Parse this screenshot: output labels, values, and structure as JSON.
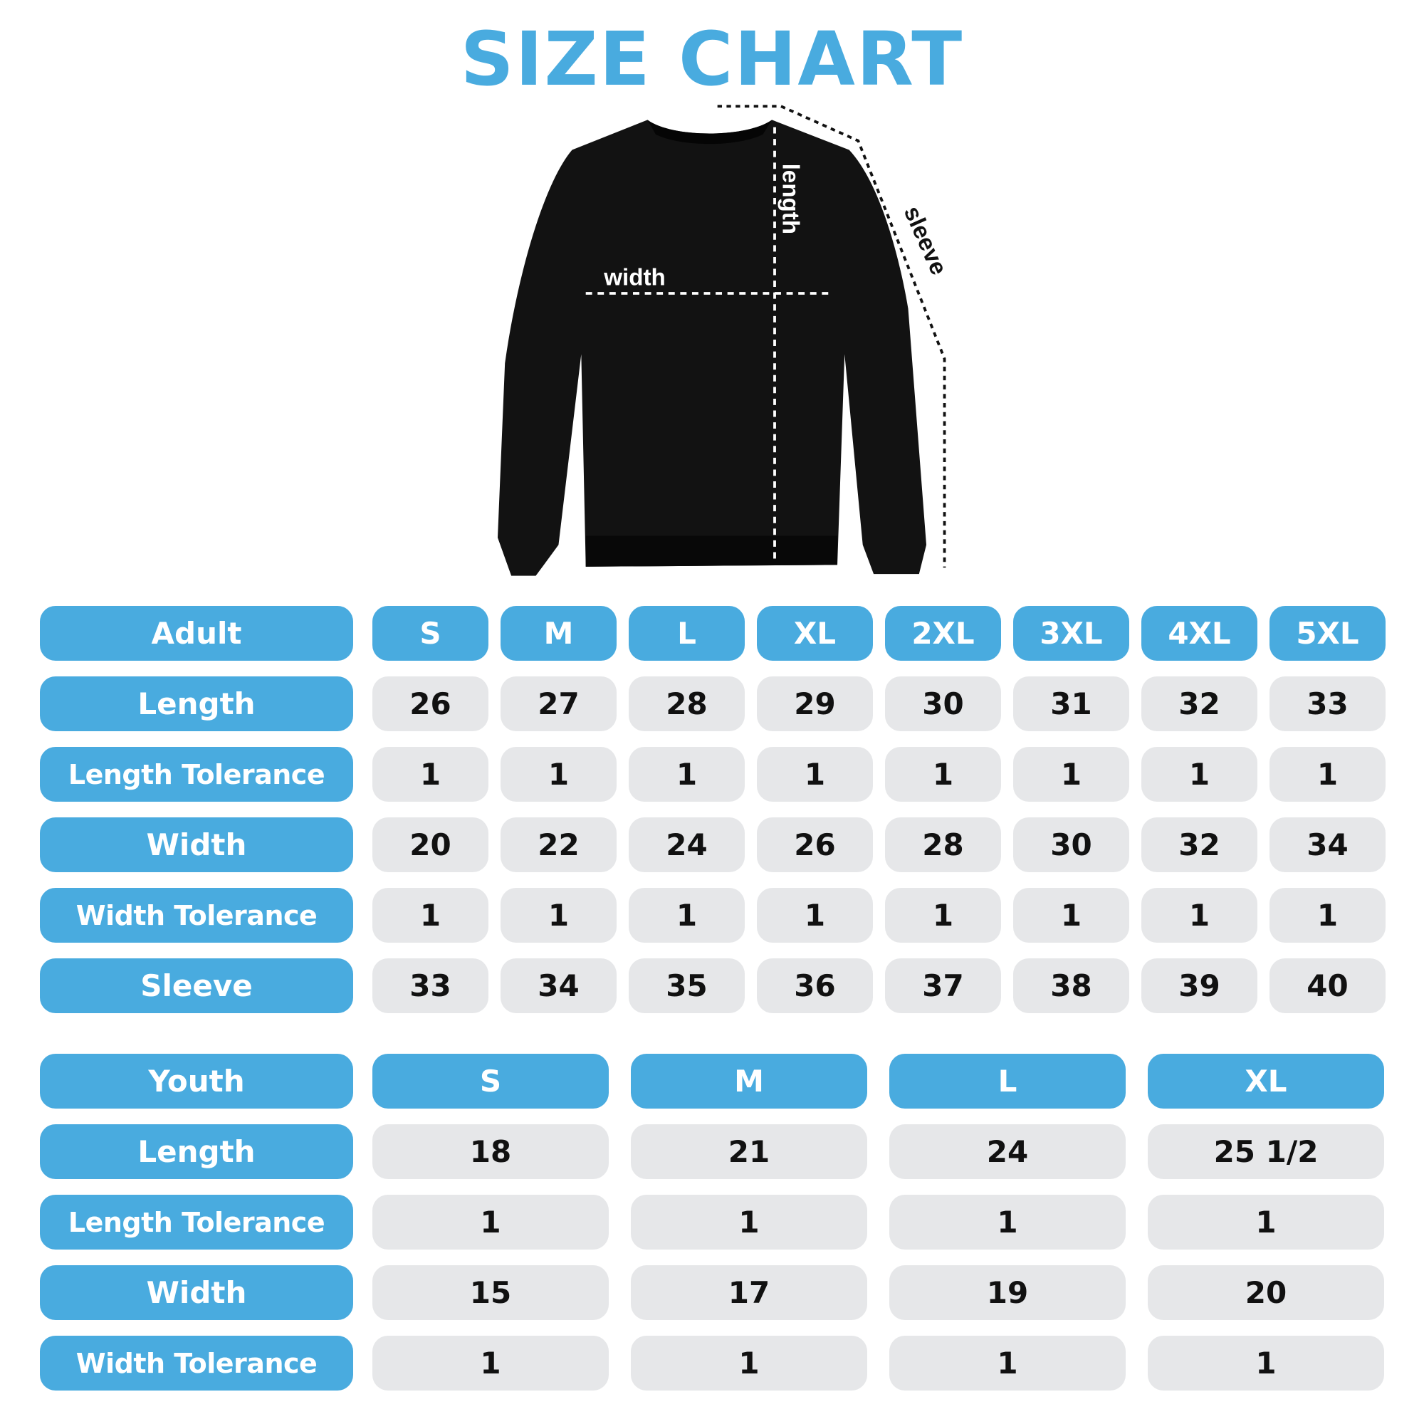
{
  "title": "SIZE CHART",
  "diagram_labels": {
    "width": "width",
    "length": "length",
    "sleeve": "sleeve"
  },
  "colors": {
    "accent": "#49ABDF",
    "cell": "#E6E7E9",
    "garment": "#111111"
  },
  "adult": {
    "header": "Adult",
    "sizes": [
      "S",
      "M",
      "L",
      "XL",
      "2XL",
      "3XL",
      "4XL",
      "5XL"
    ],
    "rows": [
      {
        "label": "Length",
        "values": [
          "26",
          "27",
          "28",
          "29",
          "30",
          "31",
          "32",
          "33"
        ]
      },
      {
        "label": "Length Tolerance",
        "values": [
          "1",
          "1",
          "1",
          "1",
          "1",
          "1",
          "1",
          "1"
        ]
      },
      {
        "label": "Width",
        "values": [
          "20",
          "22",
          "24",
          "26",
          "28",
          "30",
          "32",
          "34"
        ]
      },
      {
        "label": "Width Tolerance",
        "values": [
          "1",
          "1",
          "1",
          "1",
          "1",
          "1",
          "1",
          "1"
        ]
      },
      {
        "label": "Sleeve",
        "values": [
          "33",
          "34",
          "35",
          "36",
          "37",
          "38",
          "39",
          "40"
        ]
      }
    ]
  },
  "youth": {
    "header": "Youth",
    "sizes": [
      "S",
      "M",
      "L",
      "XL"
    ],
    "rows": [
      {
        "label": "Length",
        "values": [
          "18",
          "21",
          "24",
          "25 1/2"
        ]
      },
      {
        "label": "Length Tolerance",
        "values": [
          "1",
          "1",
          "1",
          "1"
        ]
      },
      {
        "label": "Width",
        "values": [
          "15",
          "17",
          "19",
          "20"
        ]
      },
      {
        "label": "Width Tolerance",
        "values": [
          "1",
          "1",
          "1",
          "1"
        ]
      }
    ]
  }
}
